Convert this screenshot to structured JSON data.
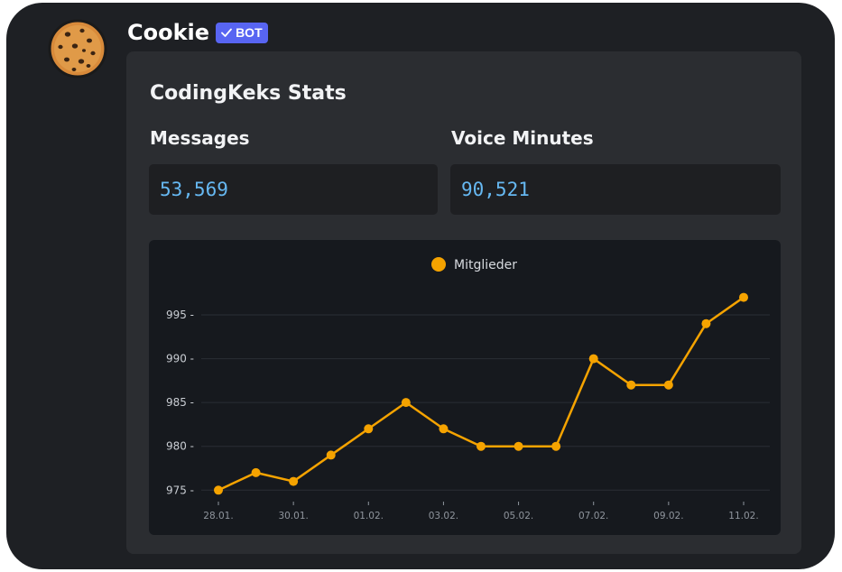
{
  "message": {
    "author": "Cookie",
    "bot_badge": "BOT",
    "avatar_icon": "cookie-icon"
  },
  "embed": {
    "title": "CodingKeks Stats",
    "fields": [
      {
        "name": "Messages",
        "value": "53,569"
      },
      {
        "name": "Voice Minutes",
        "value": "90,521"
      }
    ]
  },
  "colors": {
    "accent": "#f5a300",
    "badge": "#5865f2",
    "value_text": "#66b8f2",
    "embed_bg": "#2b2d31",
    "window_bg": "#1e2024"
  },
  "chart_data": {
    "type": "line",
    "x": [
      "28.01.",
      "29.01.",
      "30.01.",
      "31.01.",
      "01.02.",
      "02.02.",
      "03.02.",
      "04.02.",
      "05.02.",
      "06.02.",
      "07.02.",
      "08.02.",
      "09.02.",
      "10.02.",
      "11.02."
    ],
    "x_tick_labels": [
      "28.01.",
      "30.01.",
      "01.02.",
      "03.02.",
      "05.02.",
      "07.02.",
      "09.02.",
      "11.02."
    ],
    "series": [
      {
        "name": "Mitglieder",
        "color": "#f5a300",
        "values": [
          975,
          977,
          976,
          979,
          982,
          985,
          982,
          980,
          980,
          980,
          990,
          987,
          987,
          994,
          997
        ]
      }
    ],
    "y_ticks": [
      975,
      980,
      985,
      990,
      995
    ],
    "ylim": [
      974,
      998.5
    ],
    "grid": true,
    "legend": "top-center",
    "title": "",
    "xlabel": "",
    "ylabel": ""
  }
}
